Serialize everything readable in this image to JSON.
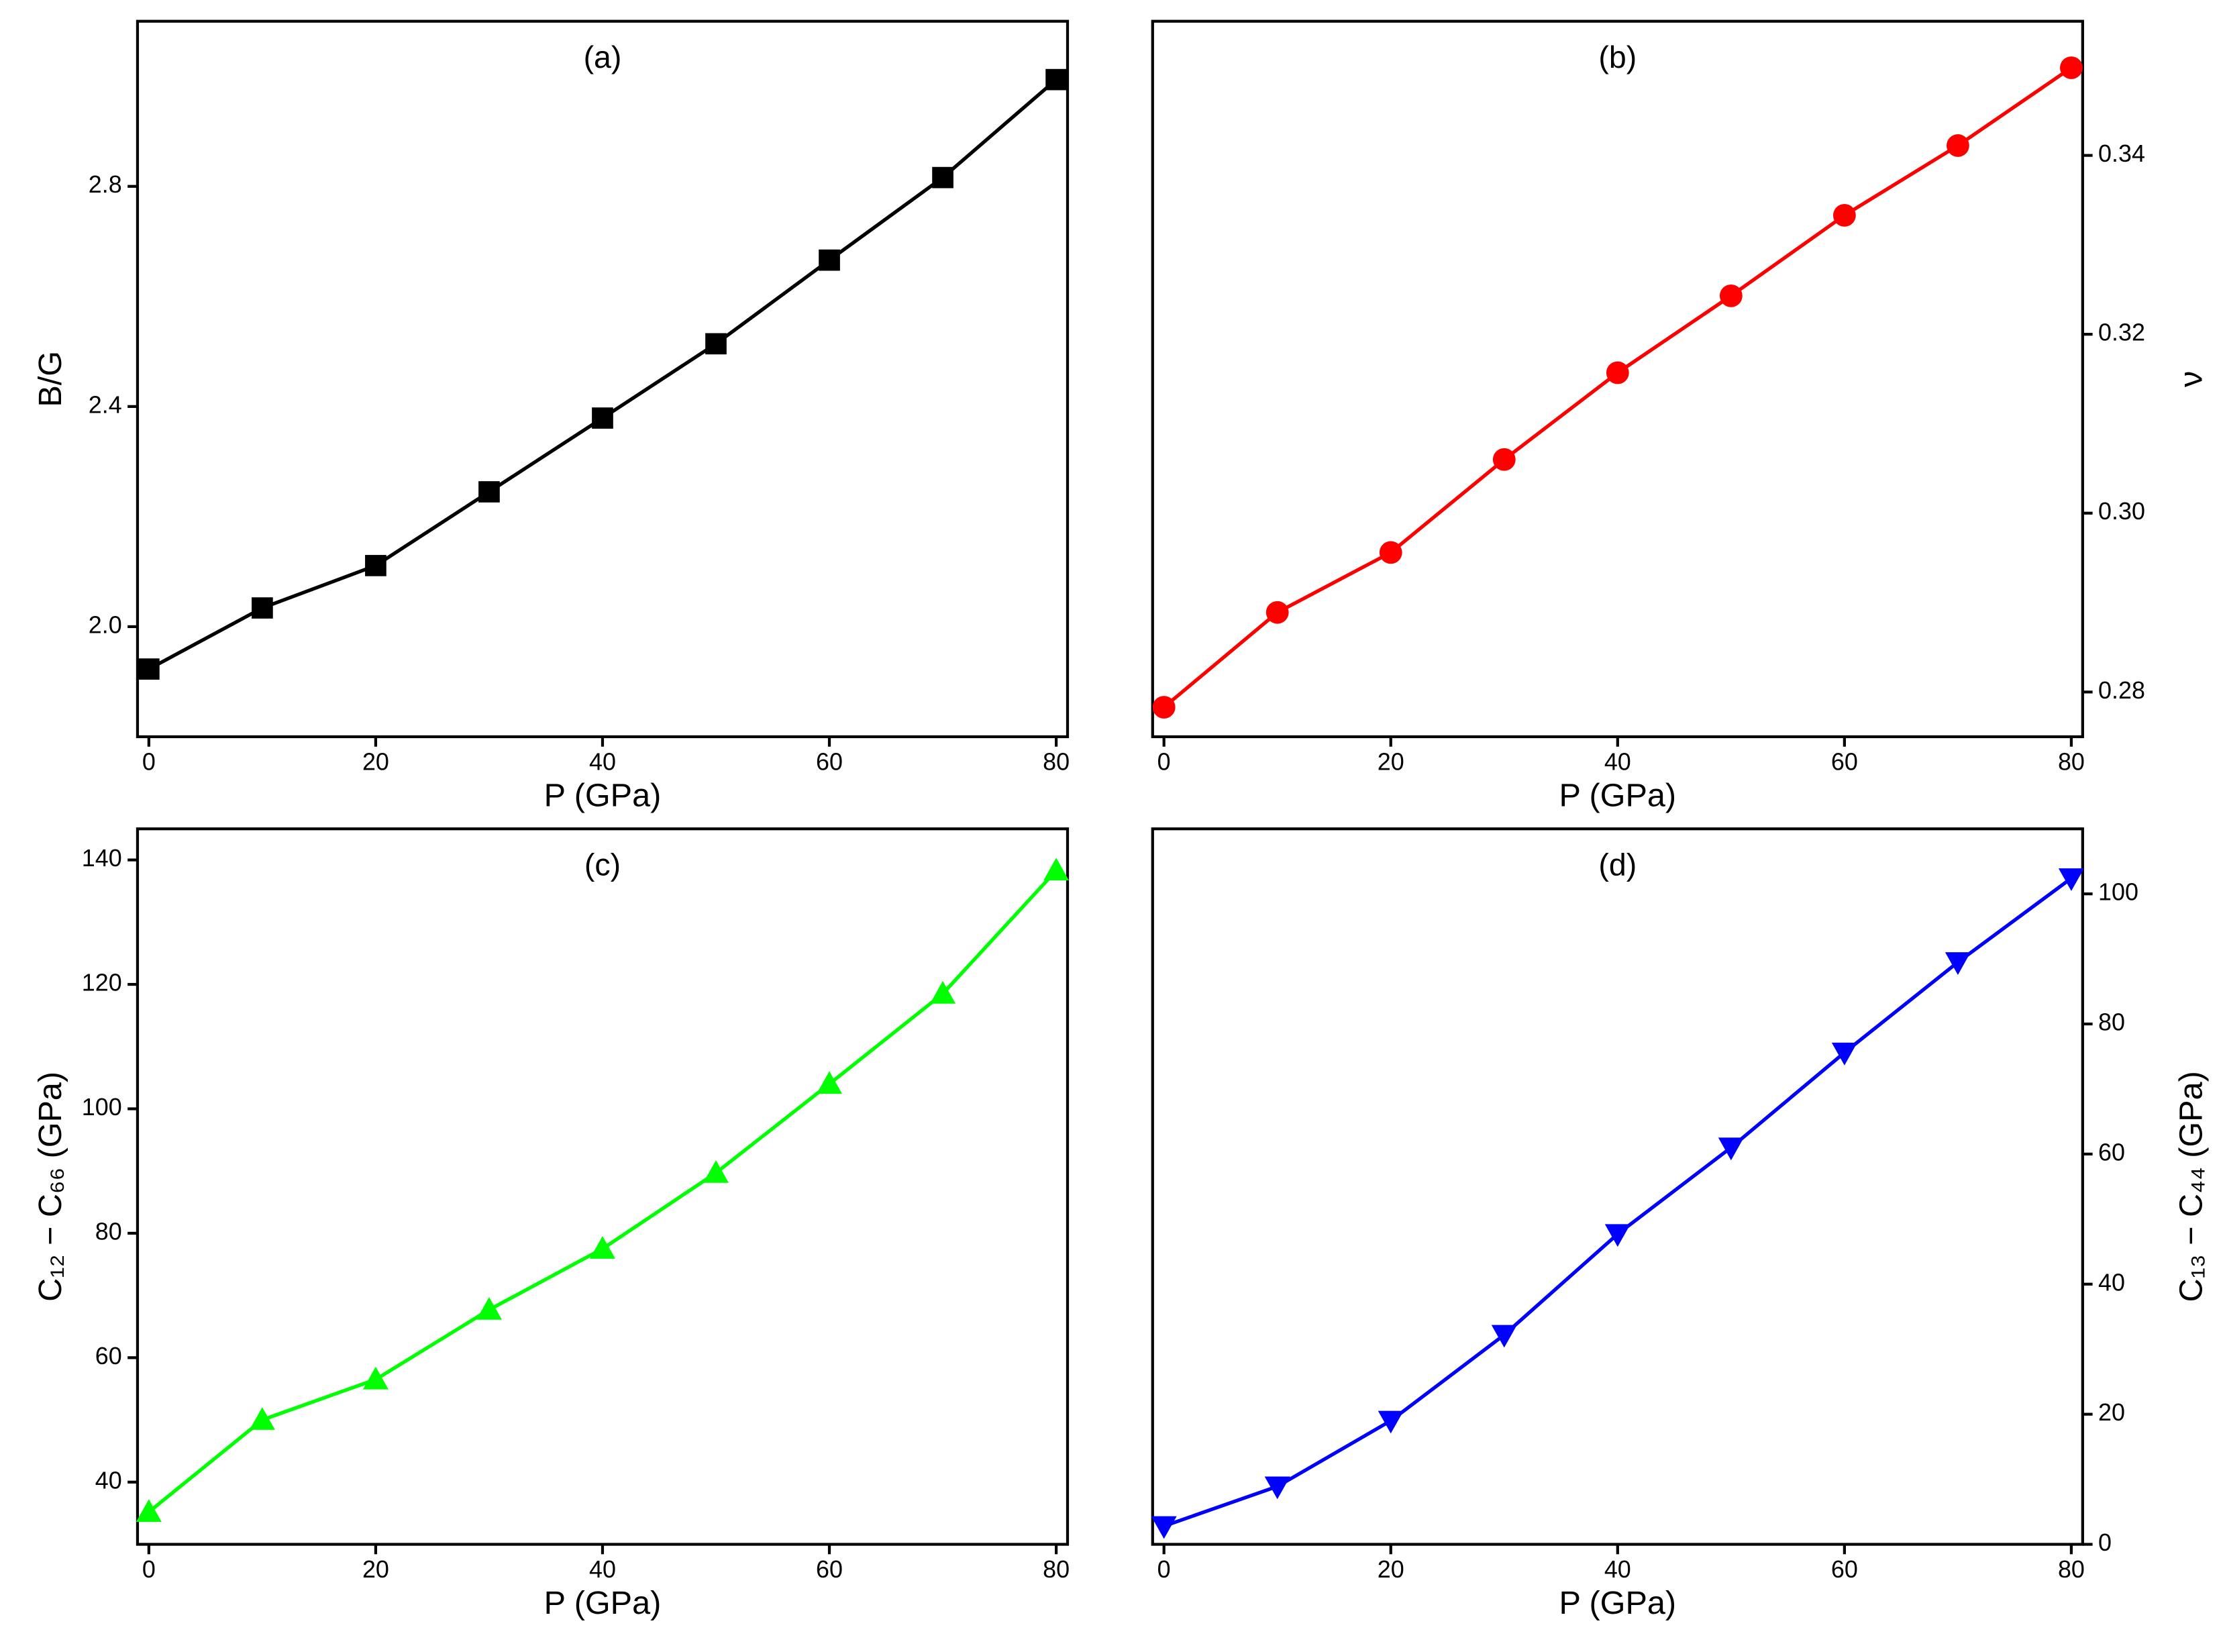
{
  "chart_data": [
    {
      "type": "line",
      "title": "(a)",
      "x_label": "P (GPa)",
      "y_label": "B/G",
      "x": [
        0,
        10,
        20,
        30,
        40,
        50,
        60,
        70,
        80
      ],
      "values": [
        1.923,
        2.034,
        2.111,
        2.245,
        2.379,
        2.514,
        2.666,
        2.816,
        2.994
      ],
      "color": "#000000",
      "marker": "square",
      "y_axis_side": "left",
      "xlim": [
        -1,
        81
      ],
      "ylim": [
        1.8,
        3.1
      ],
      "xticks": [
        0,
        20,
        40,
        60,
        80
      ],
      "yticks": [
        {
          "value": 2,
          "label": "2.0"
        },
        2.4,
        2.8
      ]
    },
    {
      "type": "line",
      "title": "(b)",
      "x_label": "P (GPa)",
      "y_label": "ν",
      "x": [
        0,
        10,
        20,
        30,
        40,
        50,
        60,
        70,
        80
      ],
      "values": [
        0.2783,
        0.2889,
        0.2956,
        0.306,
        0.3157,
        0.3243,
        0.3333,
        0.3411,
        0.3498
      ],
      "color": "#ff0000",
      "marker": "circle",
      "y_axis_side": "right",
      "xlim": [
        -1,
        81
      ],
      "ylim": [
        0.275,
        0.355
      ],
      "xticks": [
        0,
        20,
        40,
        60,
        80
      ],
      "yticks": [
        0.28,
        {
          "value": 0.3,
          "label": "0.30"
        },
        0.32,
        0.34
      ]
    },
    {
      "type": "line",
      "title": "(c)",
      "x_label": "P (GPa)",
      "y_label": "C₁₂ − C₆₆ (GPa)",
      "x": [
        0,
        10,
        20,
        30,
        40,
        50,
        60,
        70,
        80
      ],
      "values": [
        35.2,
        50,
        56.5,
        67.7,
        77.5,
        89.7,
        104,
        118.5,
        138.3
      ],
      "color": "#00ff00",
      "marker": "triangle-up",
      "y_axis_side": "left",
      "xlim": [
        -1,
        81
      ],
      "ylim": [
        30,
        145
      ],
      "xticks": [
        0,
        20,
        40,
        60,
        80
      ],
      "yticks": [
        40,
        60,
        80,
        100,
        120,
        140
      ]
    },
    {
      "type": "line",
      "title": "(d)",
      "x_label": "P (GPa)",
      "y_label": "C₁₃ − C₄₄ (GPa)",
      "x": [
        0,
        10,
        20,
        30,
        40,
        50,
        60,
        70,
        80
      ],
      "values": [
        2.8,
        8.9,
        19,
        32.2,
        47.7,
        61,
        75.6,
        89.5,
        102.4
      ],
      "color": "#0000ff",
      "marker": "triangle-down",
      "y_axis_side": "right",
      "xlim": [
        -1,
        81
      ],
      "ylim": [
        0,
        110
      ],
      "xticks": [
        0,
        20,
        40,
        60,
        80
      ],
      "yticks": [
        0,
        20,
        40,
        60,
        80,
        100
      ]
    }
  ]
}
